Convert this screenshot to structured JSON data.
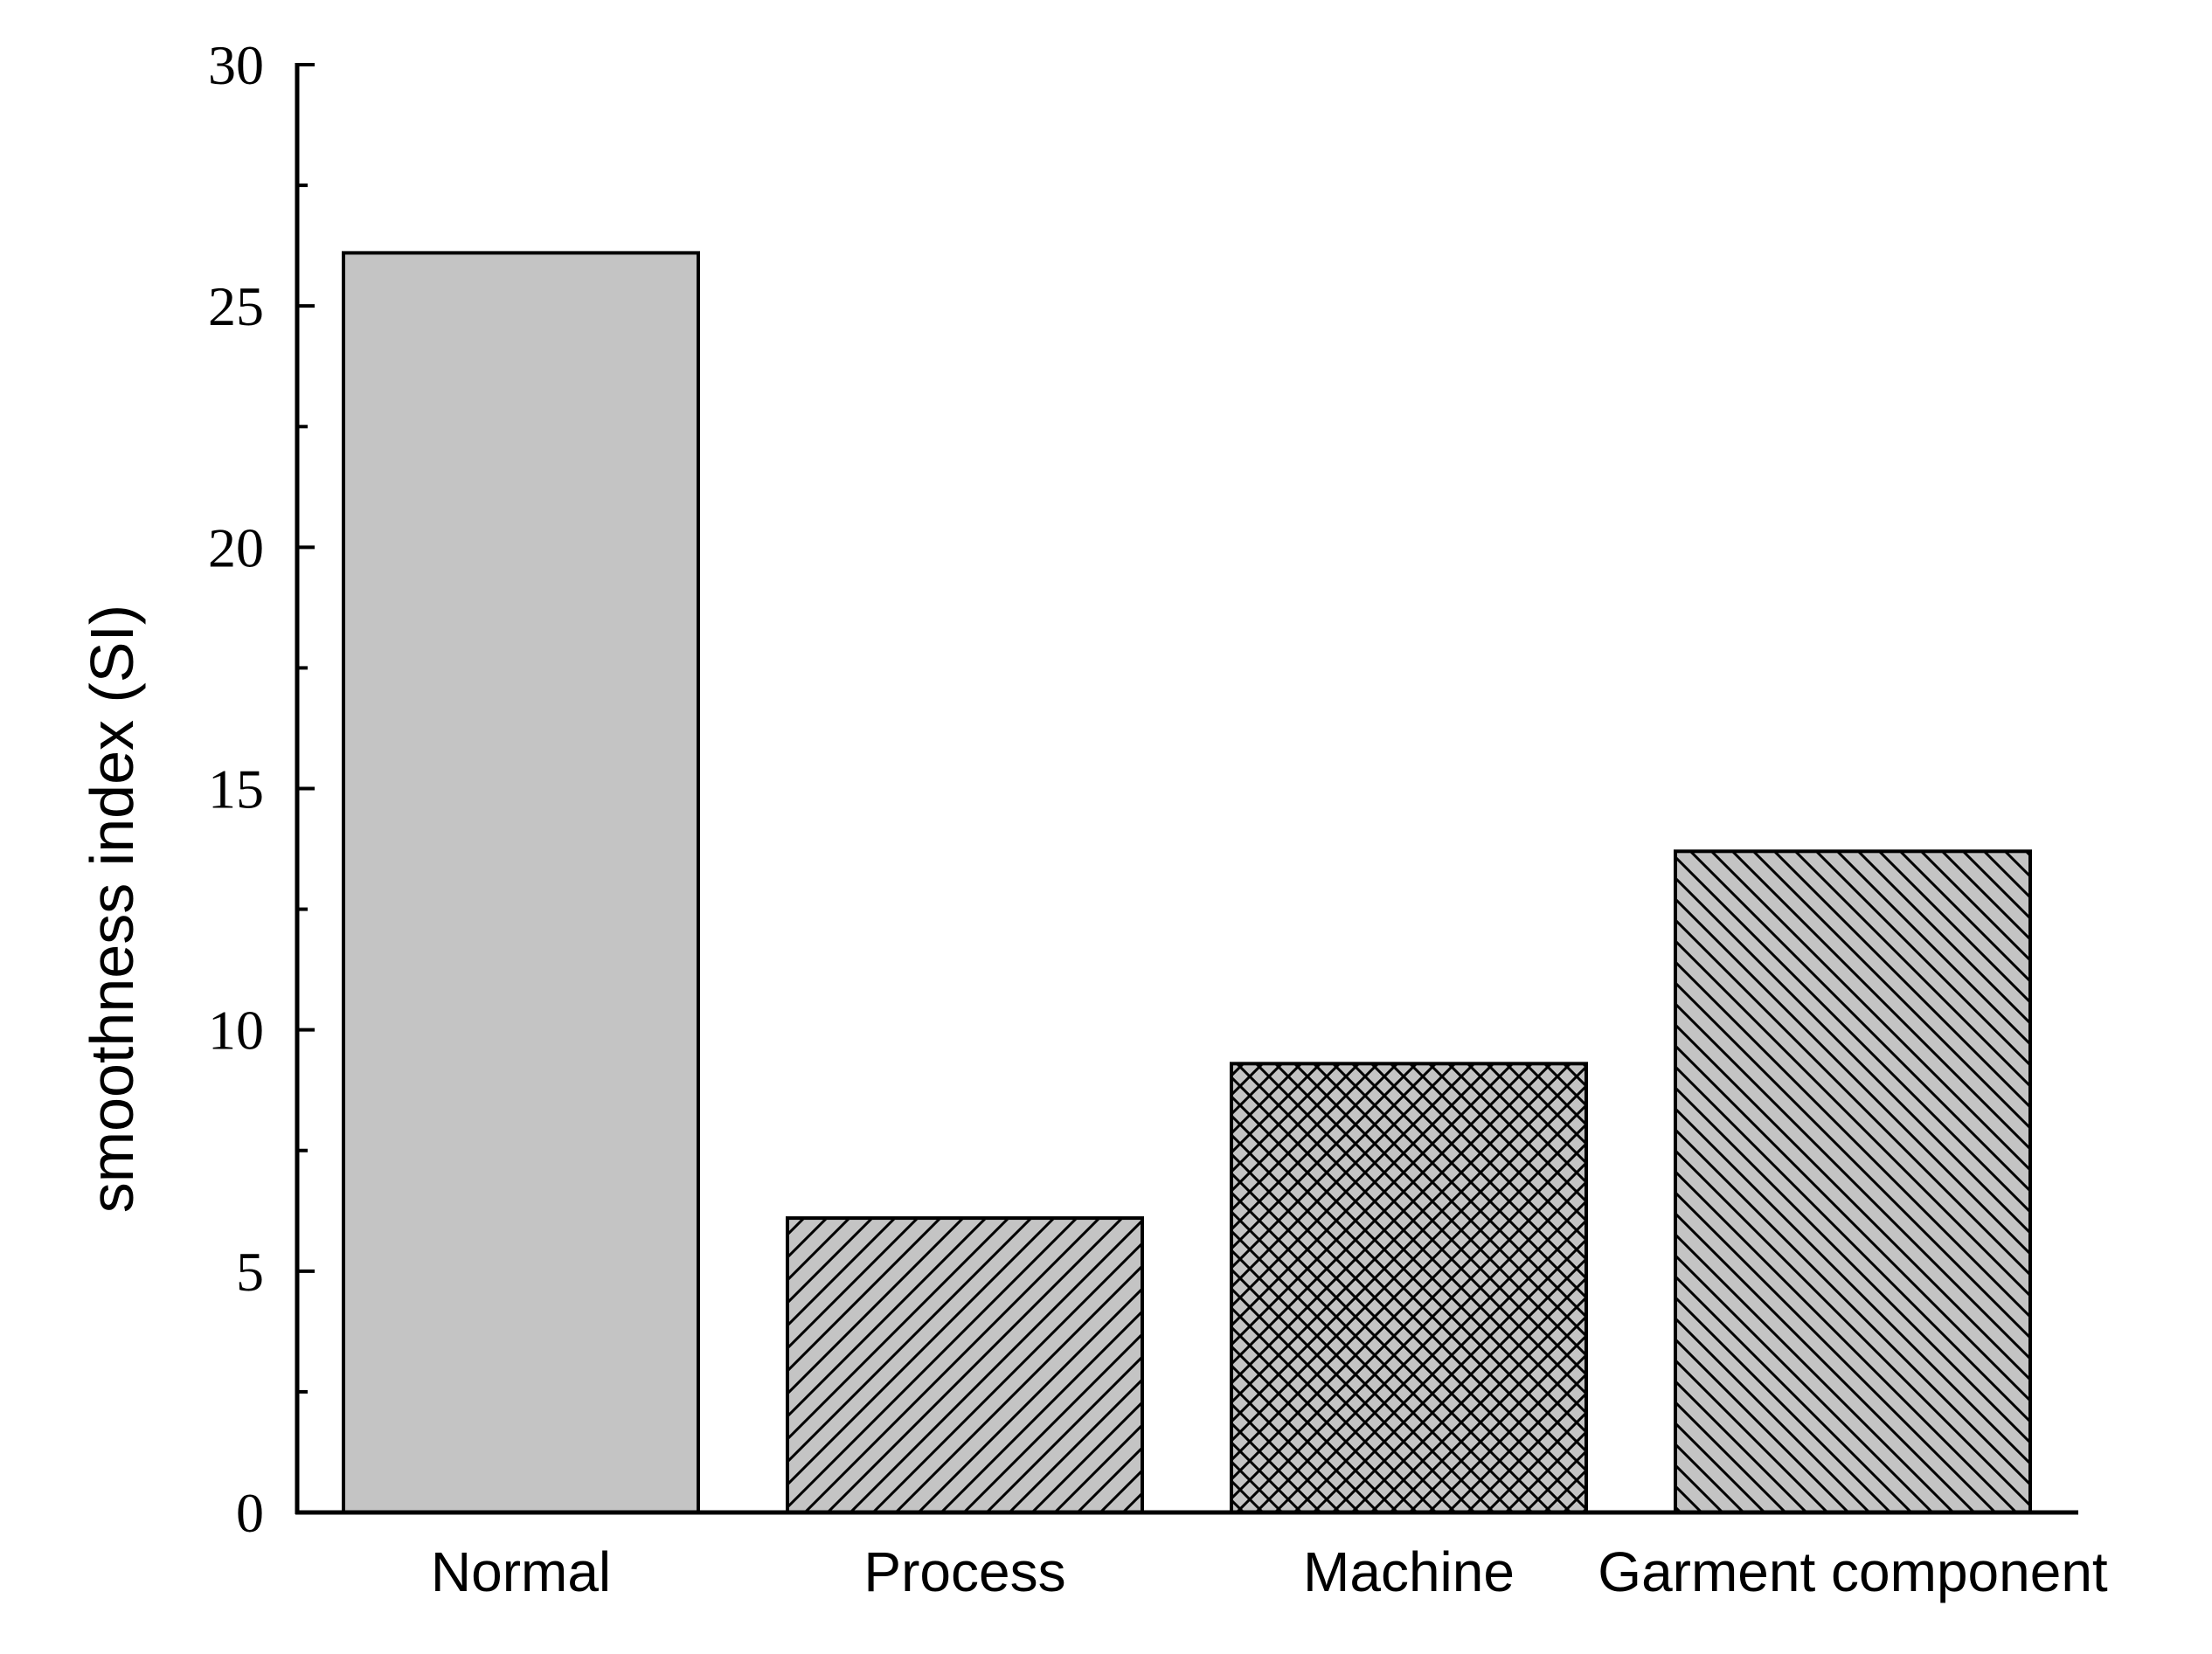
{
  "chart_data": {
    "type": "bar",
    "title": "",
    "xlabel": "",
    "ylabel": "smoothness index (SI)",
    "categories": [
      "Normal",
      "Process",
      "Machine",
      "Garment component"
    ],
    "values": [
      26.1,
      6.1,
      9.3,
      13.7
    ],
    "fill_patterns": [
      "solid",
      "diagonal-up",
      "crosshatch",
      "diagonal-down"
    ],
    "ylim": [
      0,
      30
    ],
    "yticks": [
      0,
      5,
      10,
      15,
      20,
      25,
      30
    ],
    "ytick_labels": [
      "0",
      "5",
      "10",
      "15",
      "20",
      "25",
      "30"
    ],
    "minor_ticks": true,
    "grid": false,
    "legend": "none",
    "colors": {
      "bar_fill": "#c4c4c4",
      "bar_stroke": "#000000",
      "axis": "#000000",
      "background": "#ffffff"
    }
  }
}
